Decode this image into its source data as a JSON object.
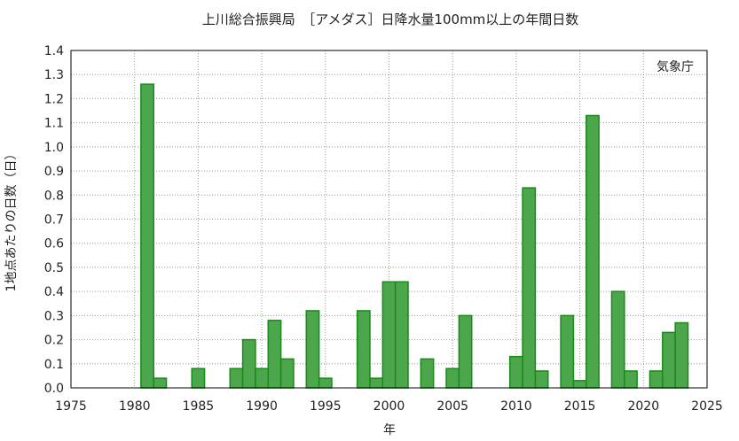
{
  "chart_data": {
    "type": "bar",
    "title": "上川総合振興局　［アメダス］日降水量100mm以上の年間日数",
    "xlabel": "年",
    "ylabel": "1地点あたりの日数（日）",
    "source_label": "気象庁",
    "xlim": [
      1975,
      2025
    ],
    "ylim": [
      0,
      1.4
    ],
    "xticks": [
      1975,
      1980,
      1985,
      1990,
      1995,
      2000,
      2005,
      2010,
      2015,
      2020,
      2025
    ],
    "yticks": [
      "0.0",
      "0.1",
      "0.2",
      "0.3",
      "0.4",
      "0.5",
      "0.6",
      "0.7",
      "0.8",
      "0.9",
      "1.0",
      "1.1",
      "1.2",
      "1.3",
      "1.4"
    ],
    "grid": true,
    "bar_color": "#4ca64c",
    "bar_edge_color": "#1a8a1a",
    "x": [
      1981,
      1982,
      1985,
      1988,
      1989,
      1990,
      1991,
      1992,
      1994,
      1995,
      1998,
      1999,
      2000,
      2001,
      2003,
      2005,
      2006,
      2010,
      2011,
      2012,
      2014,
      2015,
      2016,
      2018,
      2019,
      2021,
      2022,
      2023
    ],
    "values": [
      1.26,
      0.04,
      0.08,
      0.08,
      0.2,
      0.08,
      0.28,
      0.12,
      0.32,
      0.04,
      0.32,
      0.04,
      0.44,
      0.44,
      0.12,
      0.08,
      0.3,
      0.13,
      0.83,
      0.07,
      0.3,
      0.03,
      1.13,
      0.4,
      0.07,
      0.07,
      0.23,
      0.27
    ]
  }
}
